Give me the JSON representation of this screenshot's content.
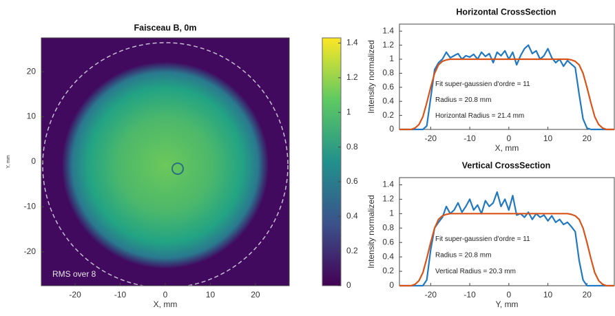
{
  "chart_data": [
    {
      "type": "heatmap",
      "title": "Faisceau B, 0m",
      "x_label": "X, mm",
      "y_label": "Y, mm",
      "xlim": [
        -27.5,
        27.5
      ],
      "xticks": [
        -20,
        -10,
        0,
        10,
        20
      ],
      "ylim": [
        -27.5,
        27.5
      ],
      "yticks": [
        -20,
        -10,
        0,
        10,
        20
      ],
      "annotation": "RMS over 8",
      "colormap": "viridis",
      "colorbar": {
        "lim": [
          0,
          1.43
        ],
        "ticks": [
          0,
          0.2,
          0.4,
          0.6,
          0.8,
          1,
          1.2,
          1.4
        ]
      }
    },
    {
      "type": "line",
      "title": "Horizontal CrossSection",
      "x_label": "X, mm",
      "y_label": "Intensity normalized",
      "xlim": [
        -28,
        27
      ],
      "xticks": [
        -20,
        -10,
        0,
        10,
        20
      ],
      "ylim": [
        0,
        1.5
      ],
      "yticks": [
        0,
        0.2,
        0.4,
        0.6,
        0.8,
        1,
        1.2,
        1.4
      ],
      "annotations": [
        "Fit super-gaussien d'ordre = 11",
        "Radius = 20.8 mm",
        "Horizontal Radius = 21.4 mm"
      ],
      "x": [
        -28,
        -27,
        -26,
        -25,
        -24,
        -23,
        -22,
        -21,
        -20,
        -19,
        -18,
        -17,
        -16,
        -15,
        -14,
        -13,
        -12,
        -11,
        -10,
        -9,
        -8,
        -7,
        -6,
        -5,
        -4,
        -3,
        -2,
        -1,
        0,
        1,
        2,
        3,
        4,
        5,
        6,
        7,
        8,
        9,
        10,
        11,
        12,
        13,
        14,
        15,
        16,
        17,
        18,
        19,
        20,
        21,
        22,
        23,
        24,
        25,
        26,
        27
      ],
      "series": [
        {
          "color": "#1f78c1",
          "values": [
            0,
            0,
            0,
            0,
            0,
            0,
            0,
            0.05,
            0.45,
            0.85,
            0.95,
            1.0,
            1.1,
            1.02,
            1.05,
            1.08,
            1.0,
            1.05,
            1.03,
            1.07,
            1.0,
            1.1,
            1.04,
            1.08,
            0.95,
            1.1,
            1.05,
            1.12,
            1.0,
            1.1,
            0.92,
            1.05,
            1.15,
            1.2,
            1.08,
            1.12,
            1.0,
            1.05,
            1.15,
            1.02,
            0.95,
            1.0,
            0.9,
            0.98,
            0.93,
            0.88,
            0.5,
            0.15,
            0.02,
            0,
            0,
            0,
            0,
            0,
            0,
            0
          ]
        },
        {
          "color": "#d95319",
          "values": [
            0,
            0,
            0,
            0,
            0.02,
            0.07,
            0.18,
            0.38,
            0.6,
            0.8,
            0.92,
            0.97,
            0.99,
            1,
            1,
            1,
            1,
            1,
            1,
            1,
            1,
            1,
            1,
            1,
            1,
            1,
            1,
            1,
            1,
            1,
            1,
            1,
            1,
            1,
            1,
            1,
            1,
            1,
            1,
            1,
            1,
            1,
            1,
            1,
            0.99,
            0.97,
            0.92,
            0.8,
            0.6,
            0.38,
            0.18,
            0.07,
            0.02,
            0,
            0,
            0
          ]
        }
      ]
    },
    {
      "type": "line",
      "title": "Vertical CrossSection",
      "x_label": "Y, mm",
      "y_label": "Intensity normalized",
      "xlim": [
        -28,
        27
      ],
      "xticks": [
        -20,
        -10,
        0,
        10,
        20
      ],
      "ylim": [
        0,
        1.5
      ],
      "yticks": [
        0,
        0.2,
        0.4,
        0.6,
        0.8,
        1,
        1.2,
        1.4
      ],
      "annotations": [
        "Fit super-gaussien d'ordre = 11",
        "Radius = 20.8 mm",
        "Vertical Radius = 20.3 mm"
      ],
      "x": [
        -28,
        -27,
        -26,
        -25,
        -24,
        -23,
        -22,
        -21,
        -20,
        -19,
        -18,
        -17,
        -16,
        -15,
        -14,
        -13,
        -12,
        -11,
        -10,
        -9,
        -8,
        -7,
        -6,
        -5,
        -4,
        -3,
        -2,
        -1,
        0,
        1,
        2,
        3,
        4,
        5,
        6,
        7,
        8,
        9,
        10,
        11,
        12,
        13,
        14,
        15,
        16,
        17,
        18,
        19,
        20,
        21,
        22,
        23,
        24,
        25,
        26,
        27
      ],
      "series": [
        {
          "color": "#1f78c1",
          "values": [
            0,
            0,
            0,
            0,
            0,
            0,
            0,
            0.08,
            0.5,
            0.8,
            0.88,
            0.95,
            1.1,
            1.0,
            1.05,
            1.15,
            1.02,
            1.1,
            1.2,
            1.05,
            1.12,
            1.0,
            1.18,
            1.1,
            1.15,
            1.3,
            1.1,
            1.2,
            1.05,
            1.25,
            0.98,
            1.0,
            0.95,
            1.02,
            0.92,
            1.0,
            0.95,
            0.98,
            0.9,
            0.97,
            0.88,
            0.92,
            0.85,
            0.88,
            0.82,
            0.75,
            0.35,
            0.08,
            0,
            0,
            0,
            0,
            0,
            0,
            0,
            0
          ]
        },
        {
          "color": "#d95319",
          "values": [
            0,
            0,
            0,
            0,
            0.02,
            0.07,
            0.18,
            0.38,
            0.6,
            0.8,
            0.92,
            0.97,
            0.99,
            1,
            1,
            1,
            1,
            1,
            1,
            1,
            1,
            1,
            1,
            1,
            1,
            1,
            1,
            1,
            1,
            1,
            1,
            1,
            1,
            1,
            1,
            1,
            1,
            1,
            1,
            1,
            1,
            1,
            1,
            1,
            0.99,
            0.97,
            0.92,
            0.8,
            0.6,
            0.38,
            0.18,
            0.07,
            0.02,
            0,
            0,
            0
          ]
        }
      ]
    }
  ]
}
